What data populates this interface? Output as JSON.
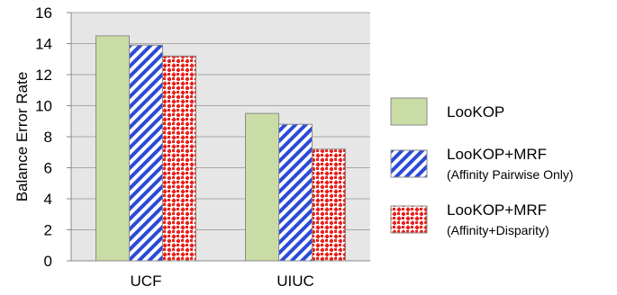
{
  "chart_data": {
    "type": "bar",
    "categories": [
      "UCF",
      "UIUC"
    ],
    "series": [
      {
        "name": "LooKOP",
        "values": [
          14.5,
          9.5
        ],
        "color": "#c9dca6",
        "pattern": "solid"
      },
      {
        "name": "LooKOP+MRF",
        "subtitle": "(Affinity Pairwise Only)",
        "values": [
          13.9,
          8.8
        ],
        "color": "#2b4bd6",
        "pattern": "diagonal-stripes"
      },
      {
        "name": "LooKOP+MRF",
        "subtitle": "(Affinity+Disparity)",
        "values": [
          13.2,
          7.2
        ],
        "color": "#e8211b",
        "pattern": "checker-dots"
      }
    ],
    "xlabel": "",
    "ylabel": "Balance Error Rate",
    "ylim": [
      0,
      16
    ],
    "yticks": [
      0,
      2,
      4,
      6,
      8,
      10,
      12,
      14,
      16
    ],
    "grid": true,
    "legend_position": "right",
    "plot_background": "#e6e6e6"
  }
}
